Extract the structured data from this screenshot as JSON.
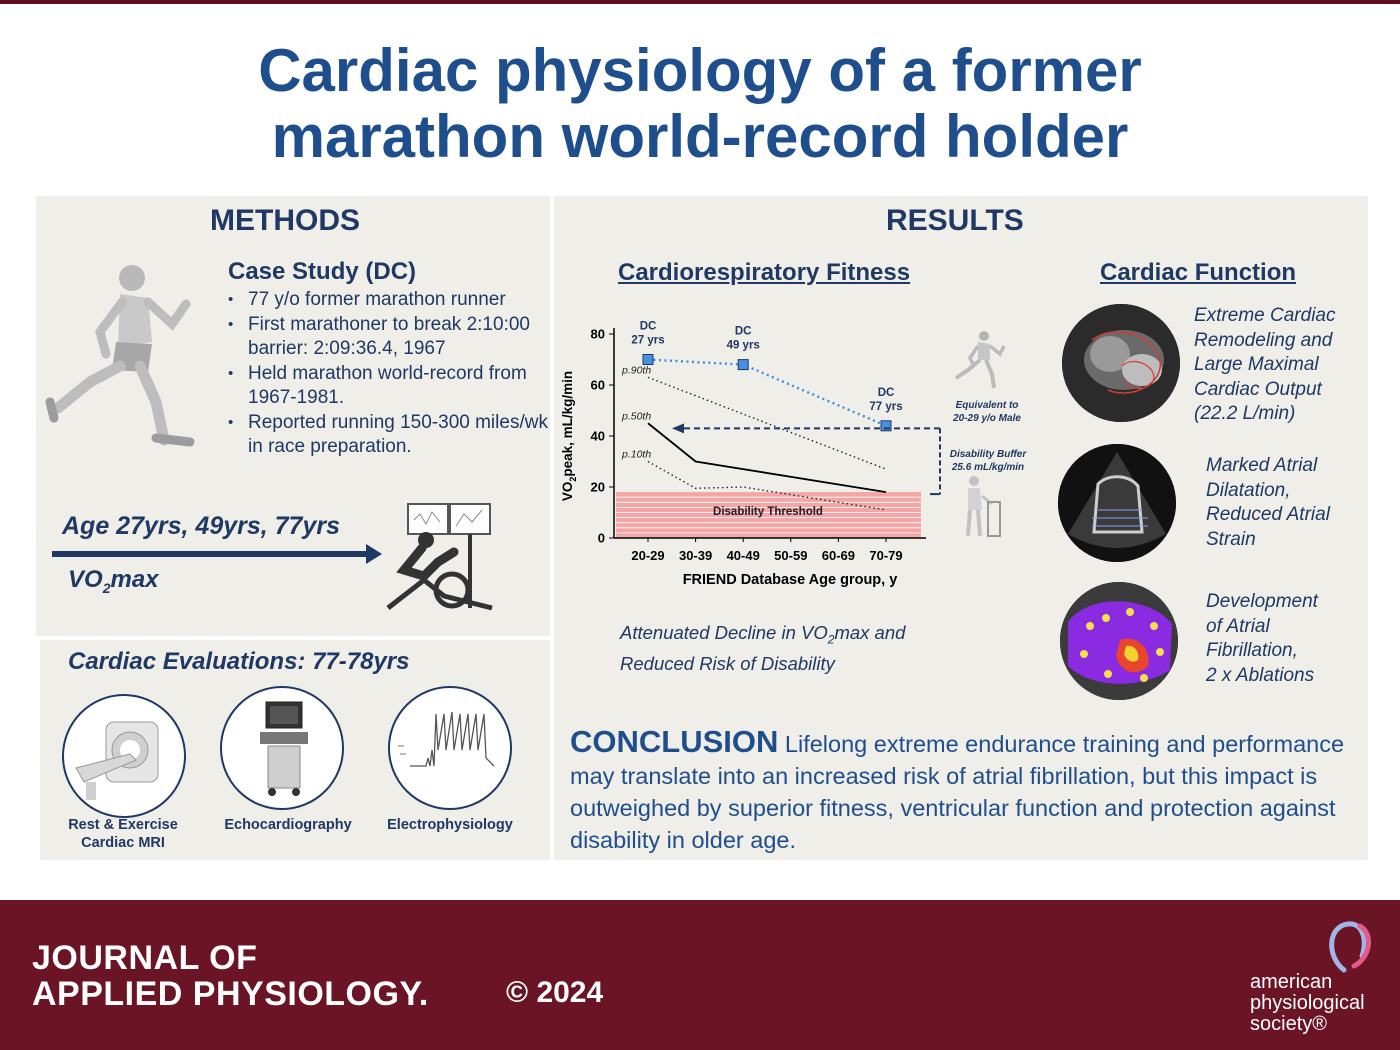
{
  "title_line1": "Cardiac physiology of a former",
  "title_line2": "marathon world-record holder",
  "methods": {
    "heading": "METHODS",
    "case_title": "Case Study (DC)",
    "bullets": [
      "77 y/o former marathon runner",
      "First marathoner to break 2:10:00 barrier: 2:09:36.4, 1967",
      "Held marathon world-record from 1967-1981.",
      "Reported running 150-300 miles/wk in race preparation."
    ],
    "ages": "Age 27yrs, 49yrs, 77yrs",
    "vo2_prefix": "VO",
    "vo2_sub": "2",
    "vo2_suffix": "max",
    "evaluations_title": "Cardiac Evaluations: 77-78yrs",
    "evaluations": [
      {
        "label_line1": "Rest & Exercise",
        "label_line2": "Cardiac MRI"
      },
      {
        "label_line1": "Echocardiography",
        "label_line2": ""
      },
      {
        "label_line1": "Electrophysiology",
        "label_line2": ""
      }
    ]
  },
  "results": {
    "heading": "RESULTS",
    "fitness_title": "Cardiorespiratory Fitness",
    "function_title": "Cardiac Function",
    "attenuated_line1_prefix": "Attenuated Decline in VO",
    "attenuated_sub": "2",
    "attenuated_line1_suffix": "max and",
    "attenuated_line2": "Reduced Risk of Disability",
    "function_items": [
      {
        "lines": [
          "Extreme Cardiac",
          "Remodeling and",
          "Large Maximal",
          "Cardiac Output",
          "(22.2 L/min)"
        ]
      },
      {
        "lines": [
          "Marked Atrial",
          "Dilatation,",
          "Reduced Atrial",
          "Strain"
        ]
      },
      {
        "lines": [
          "Development",
          "of Atrial",
          "Fibrillation,",
          "2 x Ablations"
        ]
      }
    ]
  },
  "chart_data": {
    "type": "line",
    "ylabel_prefix": "VO",
    "ylabel_sub": "2",
    "ylabel_suffix": "peak, mL/kg/min",
    "xlabel": "FRIEND Database Age group, y",
    "categories": [
      "20-29",
      "30-39",
      "40-49",
      "50-59",
      "60-69",
      "70-79"
    ],
    "yticks": [
      0,
      20,
      40,
      60,
      80
    ],
    "ylim": [
      0,
      80
    ],
    "series": [
      {
        "name": "p.90th",
        "style": "dotted",
        "x": [
          0,
          5
        ],
        "values": [
          63,
          27
        ]
      },
      {
        "name": "p.50th",
        "style": "solid",
        "x": [
          0,
          1,
          5
        ],
        "values": [
          45,
          30,
          18
        ]
      },
      {
        "name": "p.10th",
        "style": "dotted",
        "x": [
          0,
          1,
          2,
          5
        ],
        "values": [
          30,
          19.5,
          20,
          11
        ]
      },
      {
        "name": "DC",
        "style": "blue-dotted",
        "x": [
          0,
          2,
          5
        ],
        "values": [
          70,
          68,
          44
        ]
      }
    ],
    "dc_labels": [
      {
        "line1": "DC",
        "line2": "27 yrs"
      },
      {
        "line1": "DC",
        "line2": "49 yrs"
      },
      {
        "line1": "DC",
        "line2": "77 yrs"
      }
    ],
    "disability_threshold": {
      "label": "Disability Threshold",
      "y_range": [
        0,
        18
      ]
    },
    "equivalent_arrow_y": 43,
    "equivalent_note_line1": "Equivalent to",
    "equivalent_note_line2": "20-29 y/o Male",
    "buffer_note_line1": "Disability Buffer",
    "buffer_note_line2": "25.6 mL/kg/min",
    "colors": {
      "dc": "#3a8ee6",
      "dc_marker": "#4a90e2",
      "threshold": "#f4a6a6",
      "axis": "#000000"
    }
  },
  "conclusion": {
    "label": "CONCLUSION",
    "text": " Lifelong extreme endurance training and performance may translate into an increased risk of atrial fibrillation, but this impact is outweighed by superior fitness, ventricular function and protection against disability in older age."
  },
  "footer": {
    "journal_line1": "JOURNAL OF",
    "journal_line2": "APPLIED PHYSIOLOGY.",
    "copyright": "© 2024",
    "society_line1": "american",
    "society_line2": "physiological",
    "society_line3": "society®"
  },
  "colors": {
    "title": "#1f4e8c",
    "footer": "#6b1425",
    "panel": "#efeee8"
  }
}
